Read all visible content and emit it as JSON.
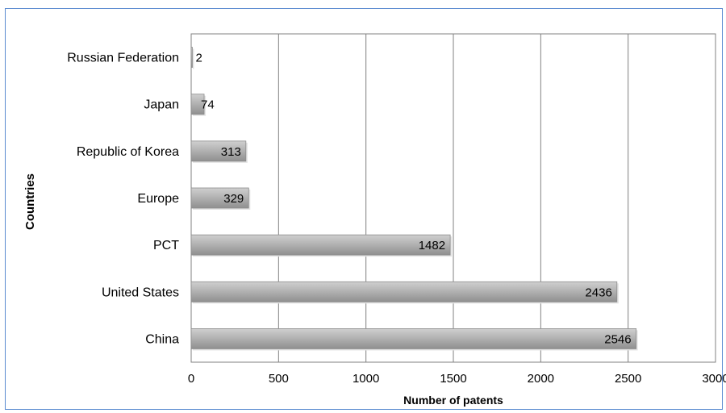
{
  "chart_data": {
    "type": "bar",
    "orientation": "horizontal",
    "categories": [
      "Russian Federation",
      "Japan",
      "Republic of Korea",
      "Europe",
      "PCT",
      "United States",
      "China"
    ],
    "values": [
      2,
      74,
      313,
      329,
      1482,
      2436,
      2546
    ],
    "data_labels": [
      "2",
      "74",
      "313",
      "329",
      "1482",
      "2436",
      "2546"
    ],
    "xlabel": "Number of patents",
    "ylabel": "Countries",
    "xlim": [
      0,
      3000
    ],
    "xticks": [
      0,
      500,
      1000,
      1500,
      2000,
      2500,
      3000
    ],
    "xtick_labels": [
      "0",
      "500",
      "1000",
      "1500",
      "2000",
      "2500",
      "3000"
    ],
    "grid": "vertical",
    "legend": "none",
    "colors": {
      "bar": "#a6a6a6",
      "bar_edge": "#8c8c8c",
      "grid": "#808080",
      "frame_border": "#5b8bd0"
    }
  }
}
